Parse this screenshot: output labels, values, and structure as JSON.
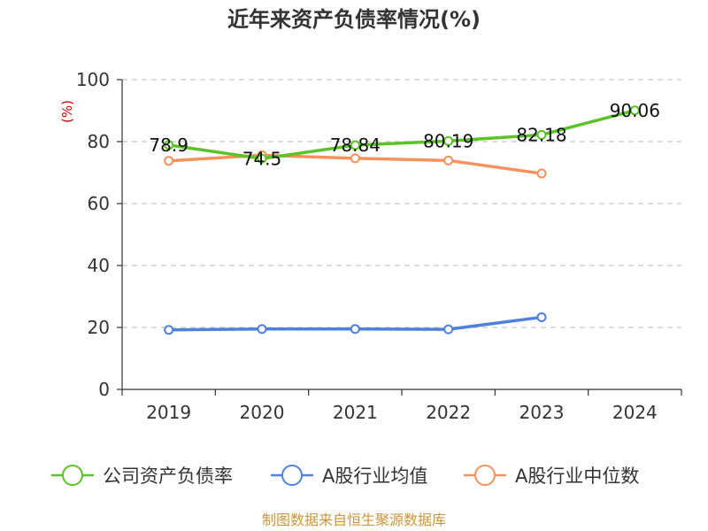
{
  "chart_data": {
    "type": "line",
    "title": "近年来资产负债率情况(%)",
    "ylabel": "(%)",
    "xlabel": "",
    "categories": [
      "2019",
      "2020",
      "2021",
      "2022",
      "2023",
      "2024"
    ],
    "ylim": [
      0,
      100
    ],
    "yticks": [
      0,
      20,
      40,
      60,
      80,
      100
    ],
    "grid": "horizontal-dashed",
    "legend_position": "bottom",
    "series": [
      {
        "name": "公司资产负债率",
        "color": "#5bc227",
        "values": [
          78.9,
          74.5,
          78.84,
          80.19,
          82.18,
          90.06
        ],
        "labels": [
          "78.9",
          "74.5",
          "78.84",
          "80.19",
          "82.18",
          "90.06"
        ]
      },
      {
        "name": "A股行业均值",
        "color": "#4f80dc",
        "values": [
          19.2,
          19.5,
          19.5,
          19.4,
          23.3,
          null
        ]
      },
      {
        "name": "A股行业中位数",
        "color": "#f4925d",
        "values": [
          73.8,
          75.6,
          74.6,
          73.9,
          69.7,
          null
        ]
      }
    ]
  },
  "source": "制图数据来自恒生聚源数据库"
}
